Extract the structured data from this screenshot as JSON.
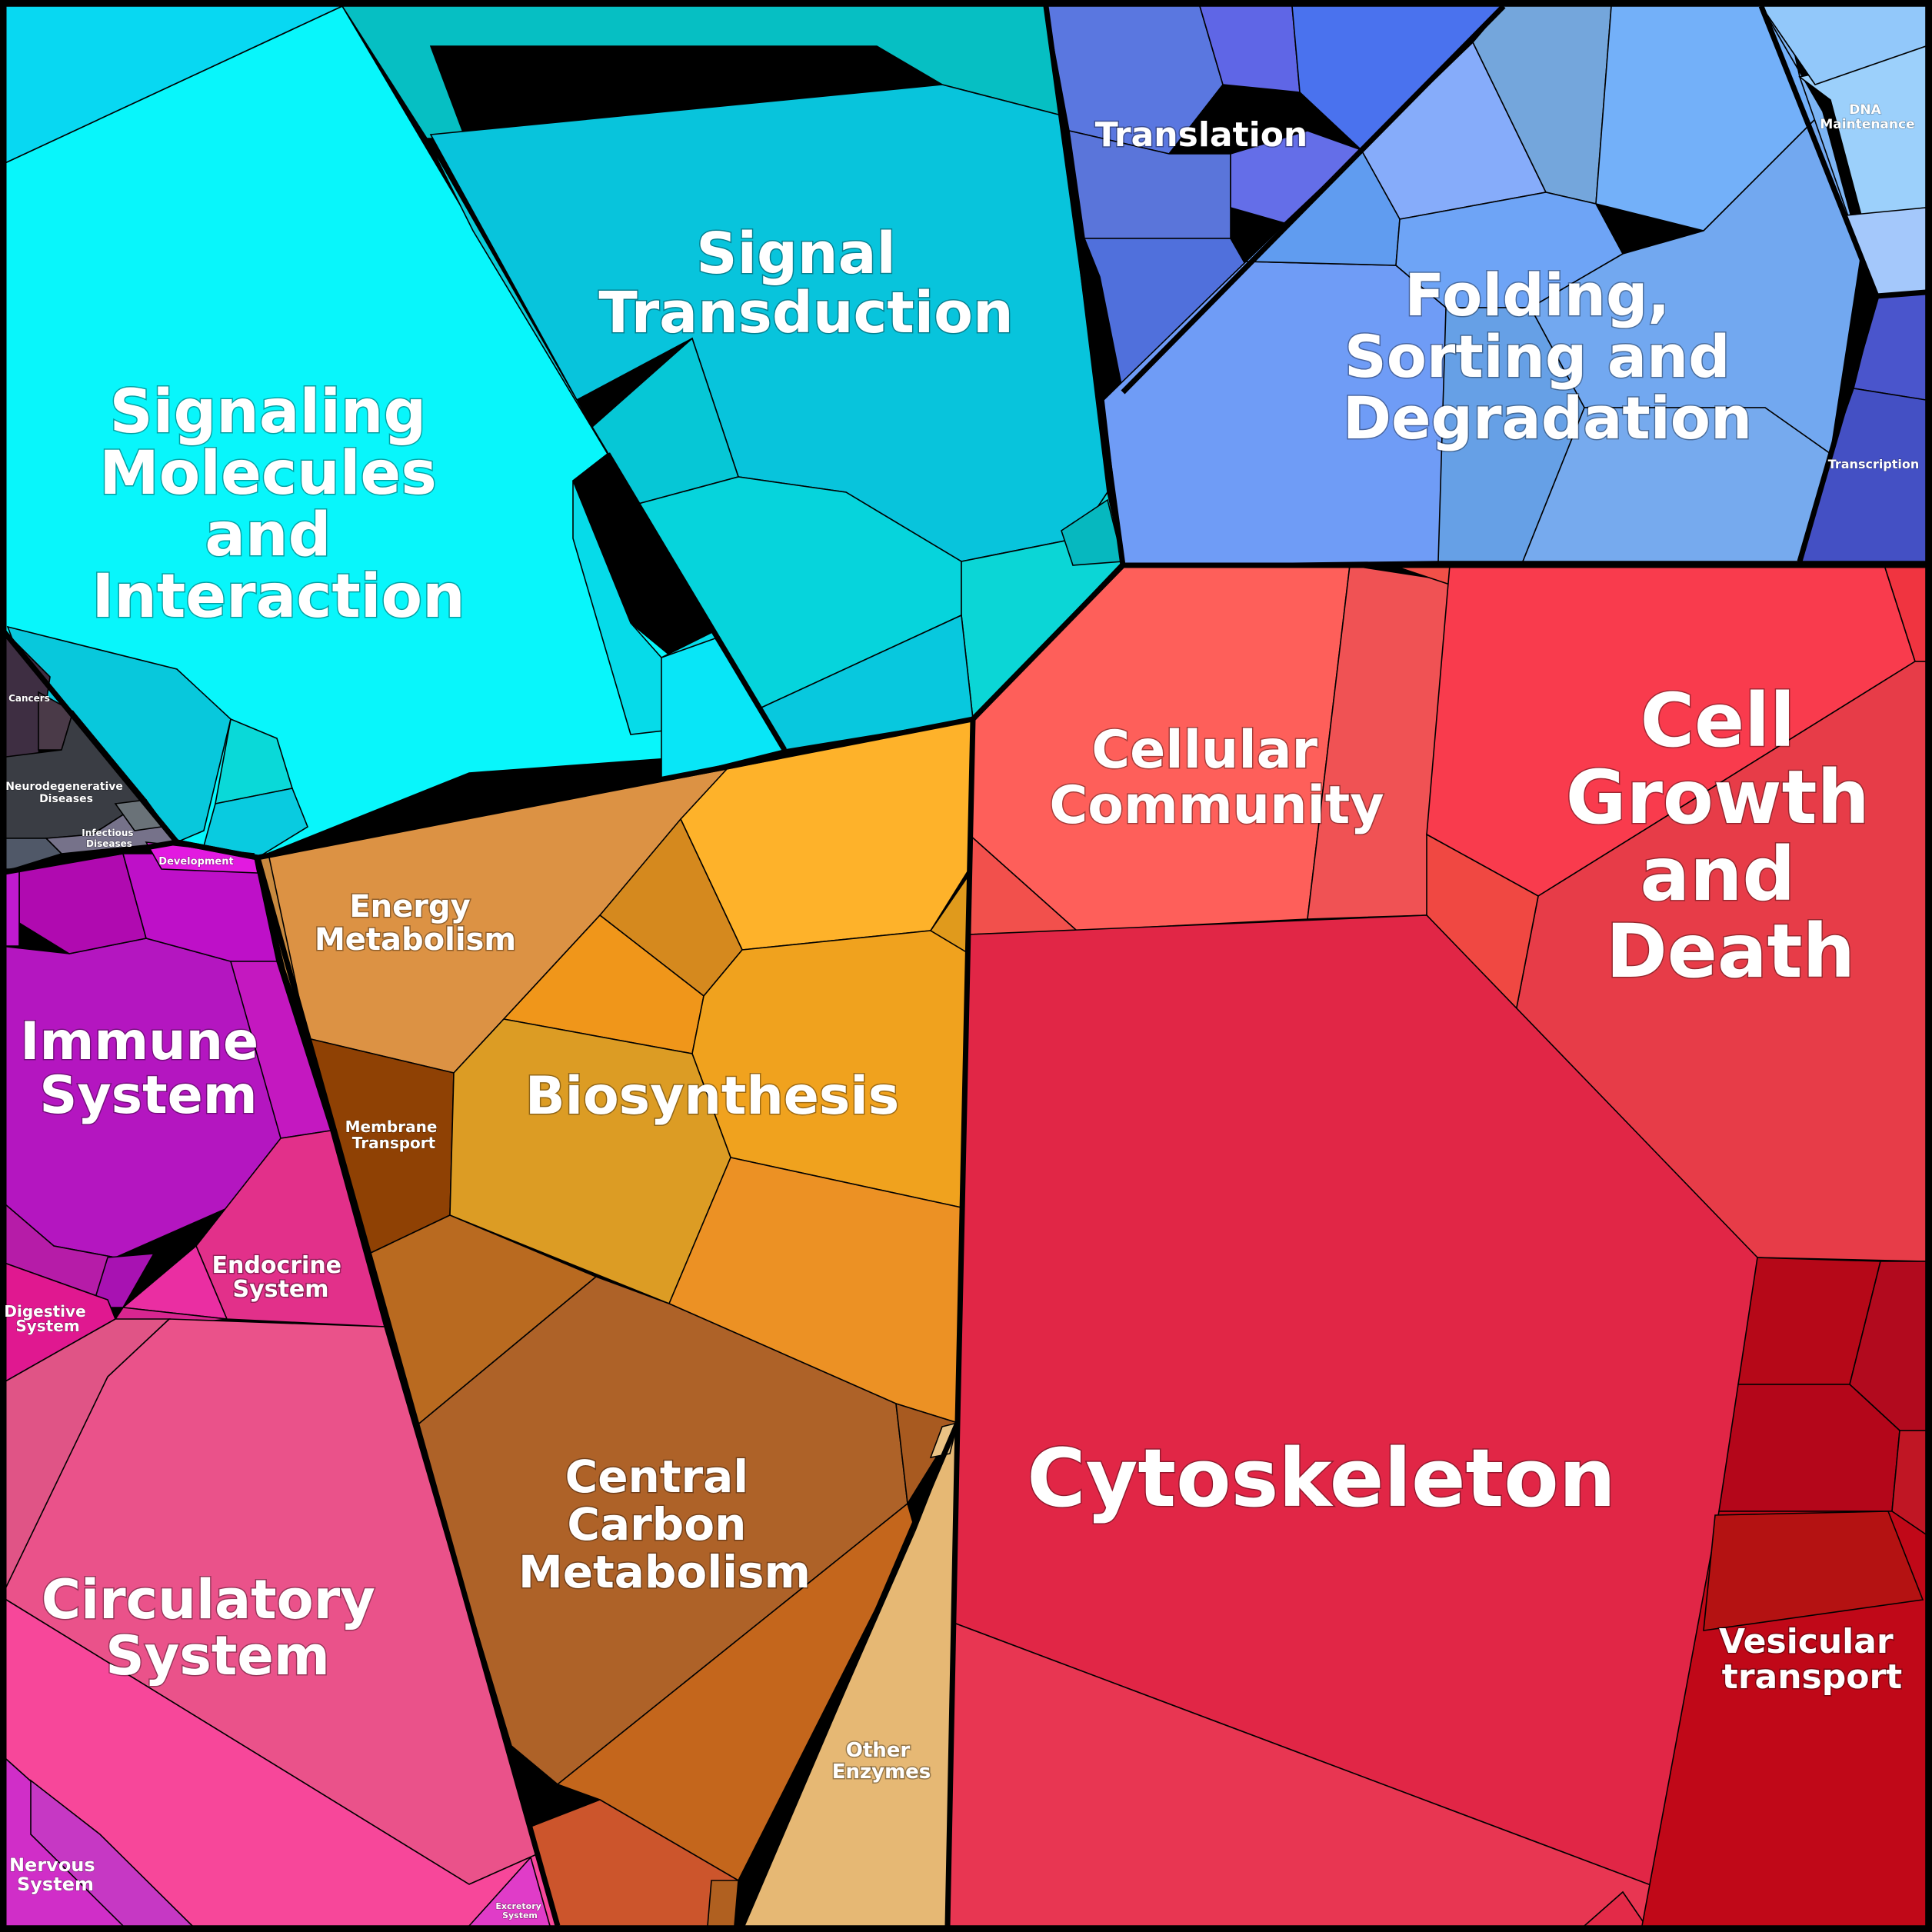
{
  "labels": {
    "signaling_molecules": [
      "Signaling",
      "Molecules",
      "and",
      "Interaction"
    ],
    "signal_transduction": [
      "Signal",
      "Transduction"
    ],
    "translation": [
      "Translation"
    ],
    "dna_maintenance": [
      "DNA",
      "Maintenance"
    ],
    "folding_sorting": [
      "Folding,",
      "Sorting and",
      "Degradation"
    ],
    "transcription": [
      "Transcription"
    ],
    "cancers": [
      "Cancers"
    ],
    "neurodegenerative": [
      "Neurodegenerative",
      "Diseases"
    ],
    "infectious": [
      "Infectious",
      "Diseases"
    ],
    "development": [
      "Development"
    ],
    "energy_metabolism": [
      "Energy",
      "Metabolism"
    ],
    "biosynthesis": [
      "Biosynthesis"
    ],
    "membrane_transport": [
      "Membrane",
      "Transport"
    ],
    "central_carbon": [
      "Central",
      "Carbon",
      "Metabolism"
    ],
    "other_enzymes": [
      "Other",
      "Enzymes"
    ],
    "cellular_community": [
      "Cellular",
      "Community"
    ],
    "cell_growth": [
      "Cell",
      "Growth",
      "and",
      "Death"
    ],
    "cytoskeleton": [
      "Cytoskeleton"
    ],
    "vesicular_transport": [
      "Vesicular",
      "transport"
    ],
    "immune_system": [
      "Immune",
      "System"
    ],
    "endocrine_system": [
      "Endocrine",
      "System"
    ],
    "digestive_system": [
      "Digestive",
      "System"
    ],
    "circulatory_system": [
      "Circulatory",
      "System"
    ],
    "nervous_system": [
      "Nervous",
      "System"
    ],
    "excretory_system": [
      "Excretory",
      "System"
    ]
  },
  "colors": {
    "signaling": "#08f6fb",
    "transduction": "#07bfc6",
    "genetic_info": "#6f9cf6",
    "translation": "#5a77e0",
    "transcription": "#4a55cc",
    "dna": "#9cd0fb",
    "diseases": "#3a3640",
    "energy": "#dc9244",
    "biosynthesis": "#e0a020",
    "membrane": "#8f4104",
    "carbon": "#ae6228",
    "other_enzymes": "#e6b874",
    "cellular_community": "#fe5f5a",
    "cell_growth": "#f93b4d",
    "cytoskeleton": "#e12646",
    "vesicular": "#c00818",
    "immune": "#b416c0",
    "endocrine": "#e2308a",
    "circulatory": "#ea528a",
    "nervous": "#d02ec8"
  }
}
